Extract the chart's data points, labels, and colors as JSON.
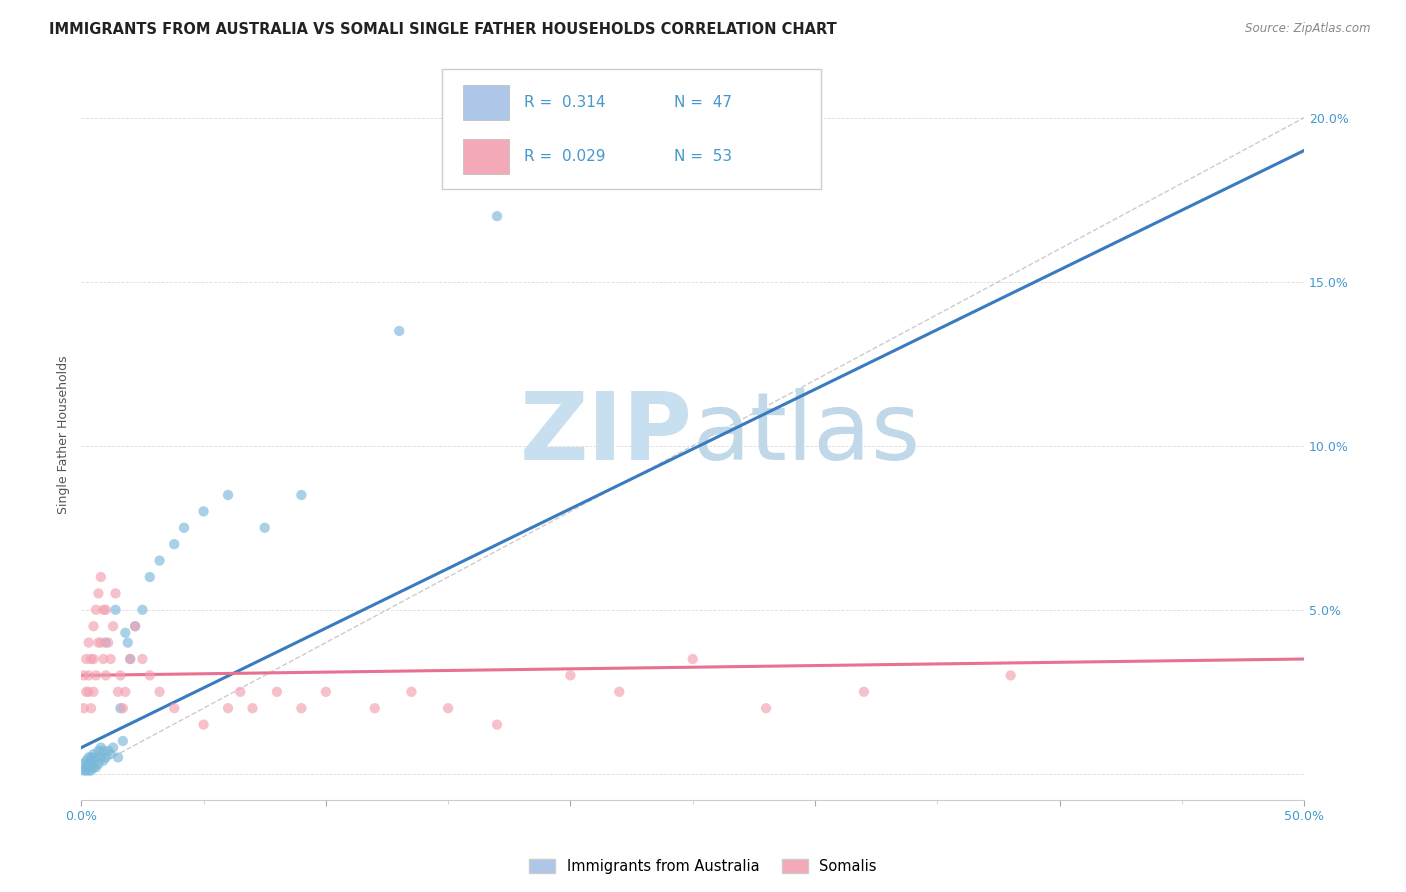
{
  "title": "IMMIGRANTS FROM AUSTRALIA VS SOMALI SINGLE FATHER HOUSEHOLDS CORRELATION CHART",
  "source": "Source: ZipAtlas.com",
  "ylabel": "Single Father Households",
  "xlim": [
    0.0,
    0.5
  ],
  "ylim": [
    -0.008,
    0.215
  ],
  "xticks": [
    0.0,
    0.1,
    0.2,
    0.3,
    0.4,
    0.5
  ],
  "xticklabels_show": [
    "0.0%",
    "",
    "",
    "",
    "",
    "50.0%"
  ],
  "yticks": [
    0.0,
    0.05,
    0.1,
    0.15,
    0.2
  ],
  "yticklabels_right": [
    "",
    "5.0%",
    "10.0%",
    "15.0%",
    "20.0%"
  ],
  "legend_entries": [
    {
      "label": "Immigrants from Australia",
      "color": "#aec6e8",
      "R": "0.314",
      "N": "47"
    },
    {
      "label": "Somalis",
      "color": "#f4a9b8",
      "R": "0.029",
      "N": "53"
    }
  ],
  "watermark_zip": "ZIP",
  "watermark_atlas": "atlas",
  "watermark_color_zip": "#c8dff0",
  "watermark_color_atlas": "#c0d8e8",
  "blue_scatter_x": [
    0.001,
    0.001,
    0.002,
    0.002,
    0.002,
    0.003,
    0.003,
    0.003,
    0.003,
    0.004,
    0.004,
    0.004,
    0.005,
    0.005,
    0.005,
    0.006,
    0.006,
    0.007,
    0.007,
    0.008,
    0.008,
    0.009,
    0.009,
    0.01,
    0.01,
    0.011,
    0.012,
    0.013,
    0.014,
    0.015,
    0.016,
    0.017,
    0.018,
    0.019,
    0.02,
    0.022,
    0.025,
    0.028,
    0.032,
    0.038,
    0.042,
    0.05,
    0.06,
    0.075,
    0.09,
    0.13,
    0.17
  ],
  "blue_scatter_y": [
    0.001,
    0.003,
    0.001,
    0.002,
    0.004,
    0.001,
    0.002,
    0.003,
    0.005,
    0.001,
    0.003,
    0.005,
    0.002,
    0.004,
    0.006,
    0.002,
    0.005,
    0.003,
    0.007,
    0.005,
    0.008,
    0.004,
    0.007,
    0.005,
    0.04,
    0.007,
    0.006,
    0.008,
    0.05,
    0.005,
    0.02,
    0.01,
    0.043,
    0.04,
    0.035,
    0.045,
    0.05,
    0.06,
    0.065,
    0.07,
    0.075,
    0.08,
    0.085,
    0.075,
    0.085,
    0.135,
    0.17
  ],
  "pink_scatter_x": [
    0.001,
    0.001,
    0.002,
    0.002,
    0.003,
    0.003,
    0.003,
    0.004,
    0.004,
    0.005,
    0.005,
    0.005,
    0.006,
    0.006,
    0.007,
    0.007,
    0.008,
    0.008,
    0.009,
    0.009,
    0.01,
    0.01,
    0.011,
    0.012,
    0.013,
    0.014,
    0.015,
    0.016,
    0.017,
    0.018,
    0.02,
    0.022,
    0.025,
    0.028,
    0.032,
    0.038,
    0.05,
    0.06,
    0.065,
    0.07,
    0.08,
    0.09,
    0.1,
    0.12,
    0.135,
    0.15,
    0.17,
    0.2,
    0.22,
    0.25,
    0.28,
    0.32,
    0.38
  ],
  "pink_scatter_y": [
    0.02,
    0.03,
    0.025,
    0.035,
    0.025,
    0.03,
    0.04,
    0.02,
    0.035,
    0.025,
    0.035,
    0.045,
    0.03,
    0.05,
    0.04,
    0.055,
    0.04,
    0.06,
    0.035,
    0.05,
    0.03,
    0.05,
    0.04,
    0.035,
    0.045,
    0.055,
    0.025,
    0.03,
    0.02,
    0.025,
    0.035,
    0.045,
    0.035,
    0.03,
    0.025,
    0.02,
    0.015,
    0.02,
    0.025,
    0.02,
    0.025,
    0.02,
    0.025,
    0.02,
    0.025,
    0.02,
    0.015,
    0.03,
    0.025,
    0.035,
    0.02,
    0.025,
    0.03
  ],
  "blue_line_x": [
    0.0,
    0.5
  ],
  "blue_line_y": [
    0.008,
    0.19
  ],
  "pink_line_x": [
    0.0,
    0.5
  ],
  "pink_line_y": [
    0.03,
    0.035
  ],
  "diagonal_line_x": [
    0.0,
    0.5
  ],
  "diagonal_line_y": [
    0.0,
    0.2
  ],
  "blue_color": "#7ab8d9",
  "blue_line_color": "#3a7bbf",
  "pink_color": "#f4a0b0",
  "pink_line_color": "#e87090",
  "diagonal_color": "#aaaaaa",
  "title_fontsize": 10.5,
  "axis_label_fontsize": 9,
  "tick_fontsize": 9,
  "right_tick_color": "#4499cc"
}
